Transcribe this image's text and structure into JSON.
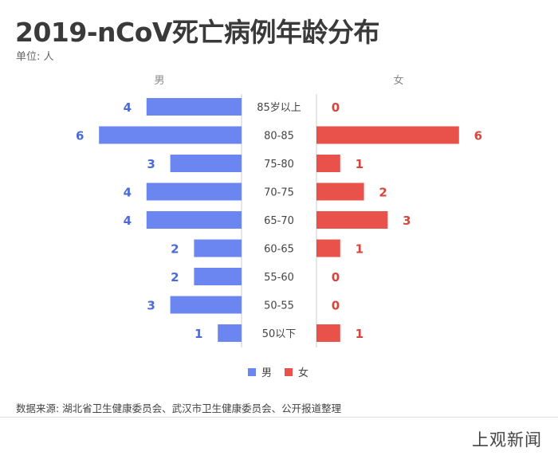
{
  "title": "2019-nCoV死亡病例年龄分布",
  "unit_label": "单位: 人",
  "source": "数据来源: 湖北省卫生健康委员会、武汉市卫生健康委员会、公开报道整理",
  "brand": "上观新闻",
  "colors": {
    "male": "#6b86f0",
    "female": "#e8524a",
    "male_label": "#4e6ad6",
    "female_label": "#d9453d"
  },
  "chart_data": {
    "type": "bar",
    "orientation": "horizontal-diverging",
    "categories": [
      "85岁以上",
      "80-85",
      "75-80",
      "70-75",
      "65-70",
      "60-65",
      "55-60",
      "50-55",
      "50以下"
    ],
    "series": [
      {
        "name": "男",
        "values": [
          4,
          6,
          3,
          4,
          4,
          2,
          2,
          3,
          1
        ]
      },
      {
        "name": "女",
        "values": [
          0,
          6,
          1,
          2,
          3,
          1,
          0,
          0,
          1
        ]
      }
    ],
    "xlim": [
      0,
      6
    ],
    "legend_position": "bottom-center",
    "grid": false
  }
}
